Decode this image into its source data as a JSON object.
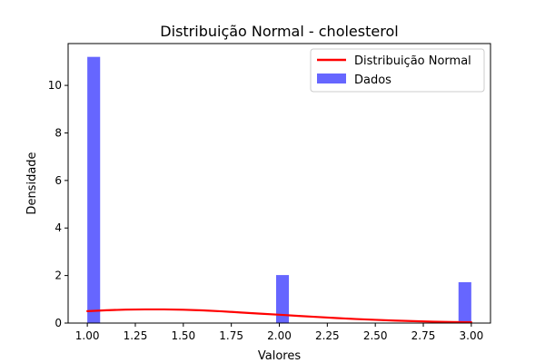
{
  "chart_data": {
    "type": "bar",
    "title": "Distribuição Normal - cholesterol",
    "xlabel": "Valores",
    "ylabel": "Densidade",
    "xlim": [
      0.9,
      3.1
    ],
    "ylim": [
      0,
      11.76
    ],
    "x_ticks": [
      "1.00",
      "1.25",
      "1.50",
      "1.75",
      "2.00",
      "2.25",
      "2.50",
      "2.75",
      "3.00"
    ],
    "y_ticks": [
      "0",
      "2",
      "4",
      "6",
      "8",
      "10"
    ],
    "grid": false,
    "legend_position": "top-right",
    "series": [
      {
        "name": "Dados",
        "type": "histogram",
        "color": "#6666ff",
        "bins": [
          {
            "x0": 1.0,
            "x1": 1.0667,
            "density": 11.2
          },
          {
            "x0": 1.9833,
            "x1": 2.05,
            "density": 2.02
          },
          {
            "x0": 2.9333,
            "x1": 3.0,
            "density": 1.72
          }
        ]
      },
      {
        "name": "Distribuição Normal",
        "type": "line",
        "color": "#ff0000",
        "x": [
          1.0,
          1.1,
          1.2,
          1.3,
          1.4,
          1.5,
          1.6,
          1.7,
          1.8,
          1.9,
          2.0,
          2.1,
          2.2,
          2.3,
          2.4,
          2.5,
          2.6,
          2.7,
          2.8,
          2.9,
          3.0
        ],
        "y": [
          0.5,
          0.54,
          0.565,
          0.575,
          0.575,
          0.56,
          0.535,
          0.495,
          0.445,
          0.395,
          0.35,
          0.3,
          0.255,
          0.21,
          0.17,
          0.135,
          0.105,
          0.08,
          0.06,
          0.045,
          0.035
        ]
      }
    ]
  }
}
